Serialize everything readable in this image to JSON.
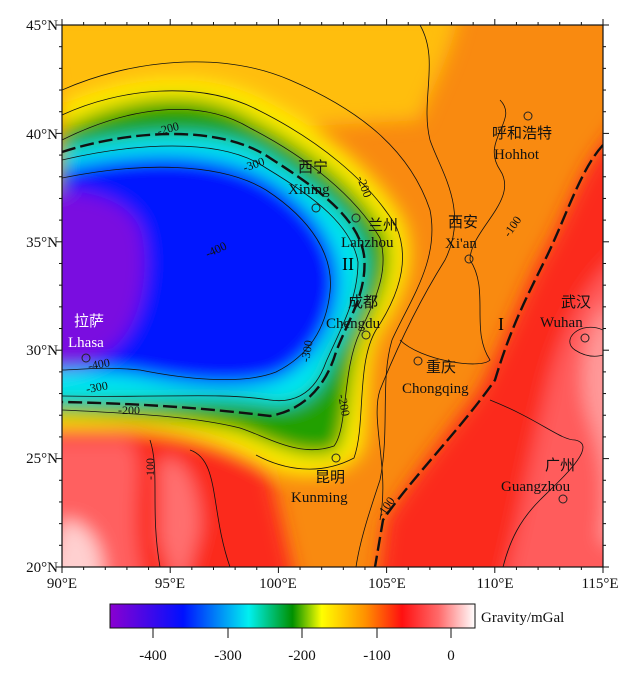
{
  "axes": {
    "lat_ticks": [
      "45°N",
      "40°N",
      "35°N",
      "30°N",
      "25°N",
      "20°N"
    ],
    "lon_ticks": [
      "90°E",
      "95°E",
      "100°E",
      "105°E",
      "110°E",
      "115°E"
    ]
  },
  "cities": [
    {
      "cn": "拉萨",
      "en": "Lhasa"
    },
    {
      "cn": "西宁",
      "en": "Xining"
    },
    {
      "cn": "兰州",
      "en": "Lanzhou"
    },
    {
      "cn": "西安",
      "en": "Xi'an"
    },
    {
      "cn": "成都",
      "en": "Chengdu"
    },
    {
      "cn": "重庆",
      "en": "Chongqing"
    },
    {
      "cn": "昆明",
      "en": "Kunming"
    },
    {
      "cn": "武汉",
      "en": "Wuhan"
    },
    {
      "cn": "广州",
      "en": "Guangzhou"
    },
    {
      "cn": "呼和浩特",
      "en": "Hohhot"
    }
  ],
  "zones": [
    "I",
    "II"
  ],
  "contour_labels": [
    "-200",
    "-300",
    "-400",
    "-200",
    "-300",
    "-200",
    "-400",
    "-300",
    "-200",
    "-100",
    "-100",
    "-100"
  ],
  "colorbar": {
    "label": "Gravity/mGal",
    "ticks": [
      "-400",
      "-300",
      "-200",
      "-100",
      "0"
    ],
    "range": [
      -457,
      33
    ],
    "colors": [
      "#8a00d0",
      "#0010ff",
      "#00f0f0",
      "#009000",
      "#ffff00",
      "#ff8000",
      "#ff1010",
      "#ffffff"
    ]
  }
}
